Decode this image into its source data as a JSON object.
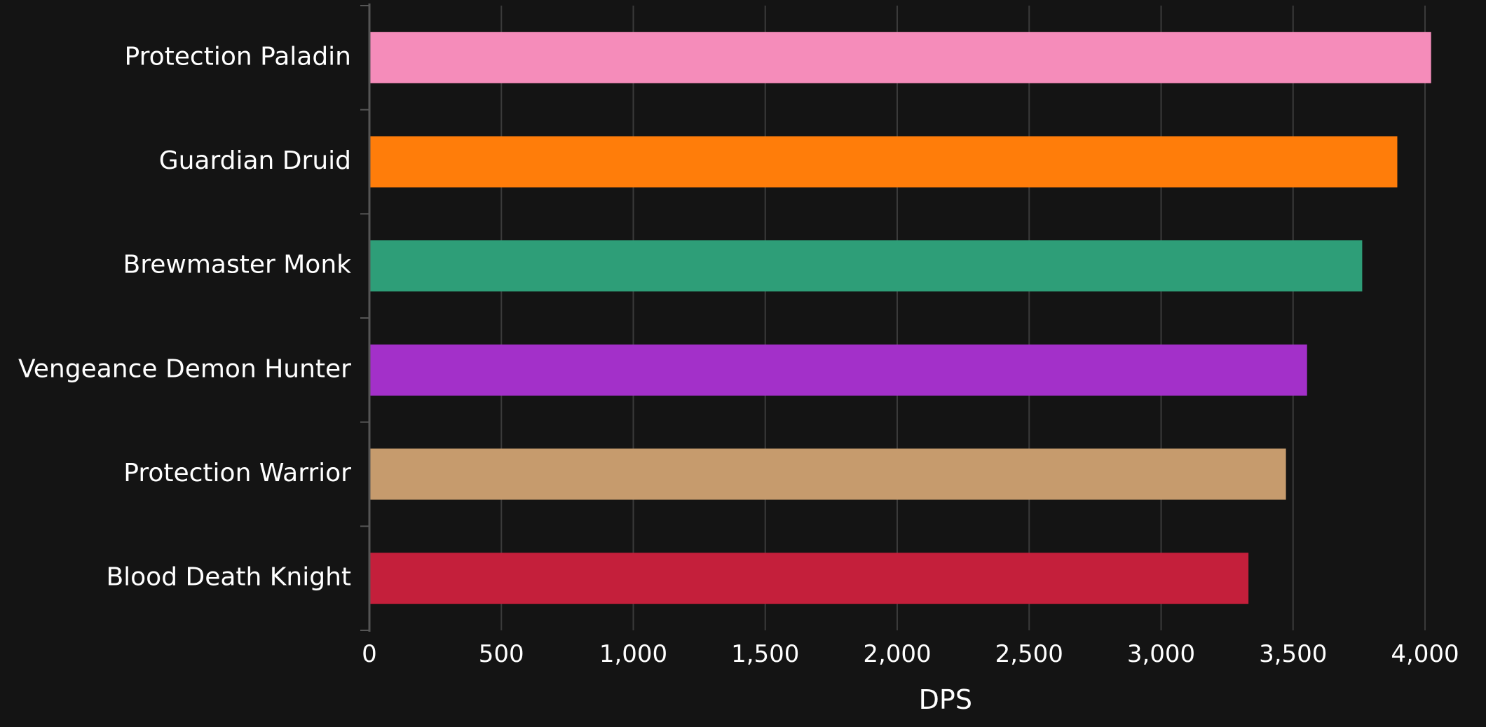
{
  "chart_data": {
    "type": "bar",
    "orientation": "horizontal",
    "categories": [
      "Protection Paladin",
      "Guardian Druid",
      "Brewmaster Monk",
      "Vengeance Demon Hunter",
      "Protection Warrior",
      "Blood Death Knight"
    ],
    "values": [
      4023,
      3895,
      3762,
      3553,
      3473,
      3331
    ],
    "colors": [
      "#F58CBA",
      "#FF7D0A",
      "#2E9E78",
      "#A330C9",
      "#C69B6D",
      "#C41F3B"
    ],
    "xlabel": "DPS",
    "ylabel": "",
    "xlim": [
      0,
      4100
    ],
    "xticks": [
      0,
      500,
      1000,
      1500,
      2000,
      2500,
      3000,
      3500,
      4000
    ],
    "xtick_labels": [
      "0",
      "500",
      "1,000",
      "1,500",
      "2,000",
      "2,500",
      "3,000",
      "3,500",
      "4,000"
    ],
    "grid": "vertical",
    "legend": "none"
  },
  "theme": {
    "background": "#141414",
    "grid_color": "#3a3a3a",
    "axis_color": "#555555",
    "text_color": "#ffffff"
  }
}
